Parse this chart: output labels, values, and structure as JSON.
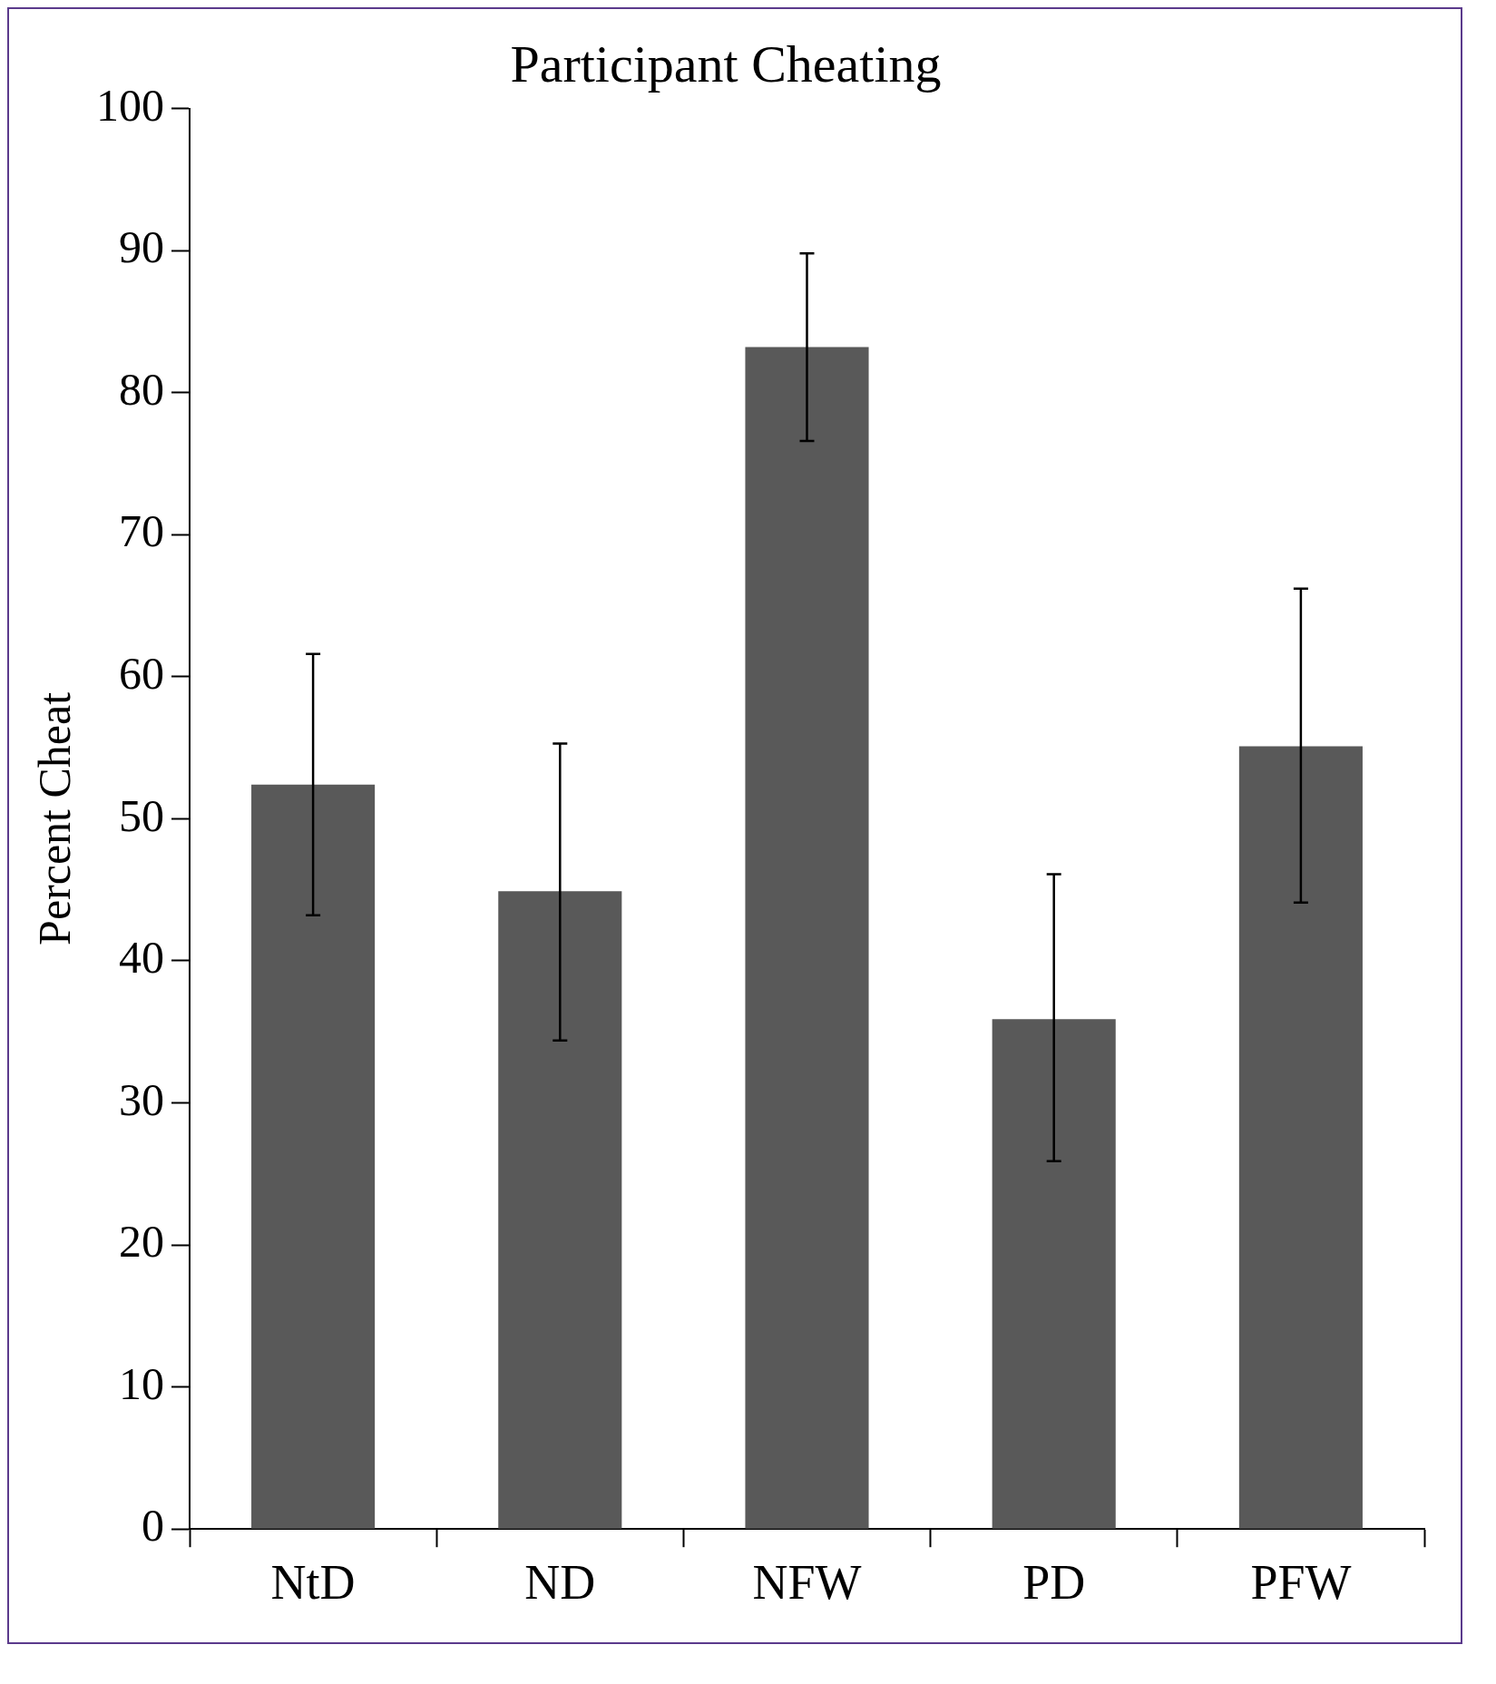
{
  "chart_data": {
    "type": "bar",
    "title": "Participant Cheating",
    "ylabel": "Percent Cheat",
    "categories": [
      "NtD",
      "ND",
      "NFW",
      "PD",
      "PFW"
    ],
    "values": [
      52.4,
      44.9,
      83.2,
      35.9,
      55.1
    ],
    "errors": [
      [
        43.2,
        61.6
      ],
      [
        34.4,
        55.3
      ],
      [
        76.6,
        89.8
      ],
      [
        25.9,
        46.1
      ],
      [
        44.1,
        66.2
      ]
    ],
    "color": "#595959",
    "ylim": [
      0,
      100
    ],
    "yticks": [
      0,
      10,
      20,
      30,
      40,
      50,
      60,
      70,
      80,
      90,
      100
    ],
    "grid": false,
    "legend": false
  }
}
